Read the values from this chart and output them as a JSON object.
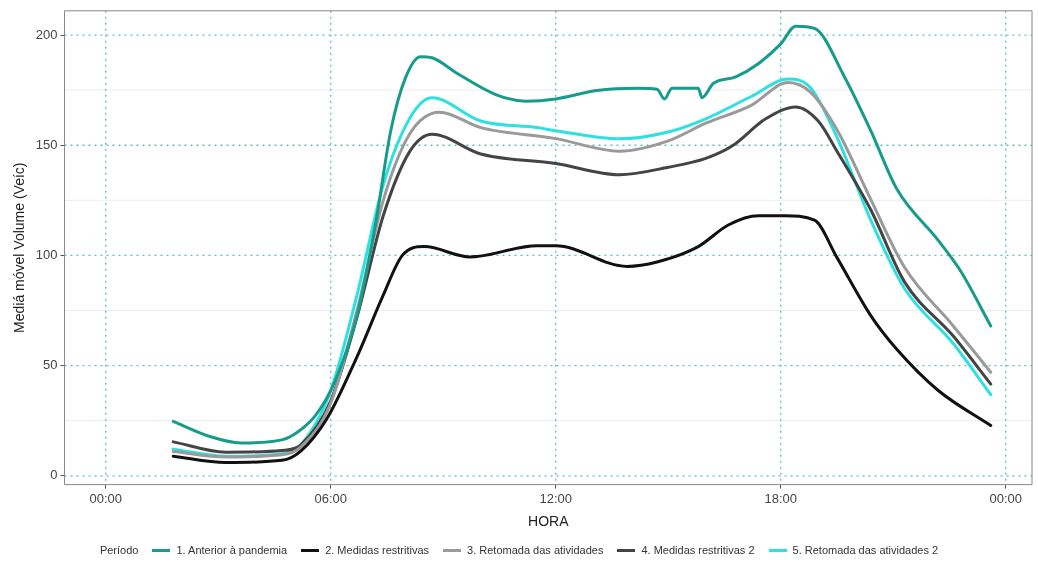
{
  "chart_data": {
    "type": "line",
    "xlabel": "HORA",
    "ylabel": "Mediá móvel Volume (Veíc)",
    "legend_title": "Período",
    "legend": "bottom",
    "grid": true,
    "marker": "none",
    "line_style": "solid",
    "xlim": [
      -1.1,
      24.7
    ],
    "xticks": [
      {
        "value": 0,
        "label": "00:00"
      },
      {
        "value": 6,
        "label": "06:00"
      },
      {
        "value": 12,
        "label": "12:00"
      },
      {
        "value": 18,
        "label": "18:00"
      },
      {
        "value": 24,
        "label": "00:00"
      }
    ],
    "ylim": [
      -4,
      211
    ],
    "yticks": [
      0,
      {
        "value": 25,
        "label": null
      },
      50,
      {
        "value": 75,
        "label": null
      },
      100,
      {
        "value": 125,
        "label": null
      },
      150,
      {
        "value": 175,
        "label": null
      },
      200
    ],
    "series": [
      {
        "name": "1. Anterior à pandemia",
        "color": "#179c8c",
        "x": [
          1.8,
          2.8,
          3.6,
          4.7,
          5.1,
          5.6,
          6.1,
          6.7,
          7.2,
          7.6,
          8.0,
          8.4,
          8.7,
          9.4,
          10.4,
          11.2,
          12,
          13.1,
          14.2,
          14.7,
          14.9,
          15.1,
          15.8,
          15.9,
          16.2,
          16.8,
          17.4,
          18,
          18.4,
          18.9,
          19.7,
          20.4,
          21.1,
          22.2,
          22.8,
          23.6
        ],
        "values": [
          24.7,
          17.7,
          14.9,
          16.3,
          19.6,
          27.5,
          42.4,
          72.7,
          114.7,
          156.6,
          180.9,
          190.2,
          189.7,
          182.3,
          173,
          170,
          171,
          174.8,
          175.8,
          175.4,
          171,
          175.8,
          175.8,
          171.6,
          178,
          181,
          187,
          196,
          204,
          203,
          181,
          156.6,
          130,
          106.8,
          92.8,
          68
        ]
      },
      {
        "name": "2. Medidas restritivas",
        "color": "#111111",
        "x": [
          1.8,
          3.2,
          4.7,
          5.2,
          5.9,
          6.7,
          7.4,
          7.9,
          8.5,
          9.7,
          11.5,
          12,
          13.9,
          14.7,
          15.8,
          16.6,
          17.4,
          18.1,
          18.9,
          19.5,
          20.4,
          21.1,
          22.2,
          23.6
        ],
        "values": [
          8.9,
          6,
          7,
          11.2,
          26,
          54,
          82,
          99.8,
          104,
          99.3,
          104.4,
          104.4,
          95,
          97,
          104,
          113.8,
          118,
          118,
          116,
          99,
          72.7,
          57.3,
          38.7,
          22.8
        ]
      },
      {
        "name": "3. Retomada das atividades",
        "color": "#9a9a9a",
        "x": [
          1.8,
          3.2,
          4.7,
          5.2,
          6,
          6.7,
          7.4,
          8.1,
          8.9,
          10,
          12,
          13.7,
          15,
          16,
          17.2,
          18.2,
          18.8,
          19.5,
          20.4,
          21.3,
          22.6,
          23.6
        ],
        "values": [
          11,
          8.5,
          9.5,
          13,
          33,
          75,
          125,
          155,
          165,
          158,
          153,
          147.3,
          152,
          160,
          168,
          178.5,
          174,
          157,
          125.4,
          94.6,
          68,
          47
        ]
      },
      {
        "name": "4. Medidas restritivas 2",
        "color": "#444444",
        "x": [
          1.8,
          3.2,
          4.7,
          5.2,
          6,
          6.7,
          7.4,
          8.1,
          8.7,
          10,
          12,
          13.7,
          15,
          16,
          16.7,
          17.6,
          18.4,
          19,
          19.5,
          20.4,
          21.3,
          22.6,
          23.6
        ],
        "values": [
          15.4,
          10.7,
          11.5,
          14,
          34,
          72,
          118,
          147,
          155,
          146,
          141.7,
          136.6,
          140,
          144,
          149.6,
          162,
          167.4,
          161,
          147.3,
          120.7,
          88,
          63.4,
          41.6
        ]
      },
      {
        "name": "5. Retomada das atividades 2",
        "color": "#2ee0e0",
        "x": [
          1.8,
          3.2,
          4.7,
          5.2,
          6,
          6.7,
          7.4,
          8.1,
          8.7,
          10,
          11.5,
          12,
          13.7,
          15,
          16,
          17.2,
          18.2,
          18.8,
          19.5,
          20.4,
          21.3,
          22.6,
          23.6
        ],
        "values": [
          12.1,
          8.9,
          10,
          14,
          38.7,
          82,
          132,
          162,
          171.5,
          161,
          158,
          156.6,
          152.9,
          156,
          162,
          172,
          180,
          176,
          153.6,
          116,
          85,
          60,
          36.8
        ]
      }
    ]
  }
}
